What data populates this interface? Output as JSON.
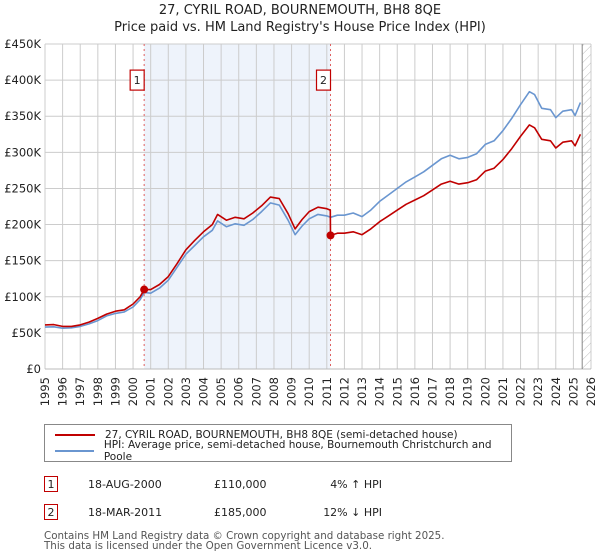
{
  "header": {
    "title": "27, CYRIL ROAD, BOURNEMOUTH, BH8 8QE",
    "subtitle": "Price paid vs. HM Land Registry's House Price Index (HPI)"
  },
  "colors": {
    "property": "#c00000",
    "hpi": "#6a96d0",
    "shade": "#eef3fb",
    "grid": "#cccccc",
    "marker_line": "#e06060"
  },
  "chart_data": {
    "type": "line",
    "title": "27, CYRIL ROAD, BOURNEMOUTH, BH8 8QE — Price paid vs. HM Land Registry's House Price Index (HPI)",
    "xlabel": "",
    "ylabel": "",
    "xlim": [
      1995,
      2026
    ],
    "ylim": [
      0,
      450000
    ],
    "grid": true,
    "legend_position": "below",
    "x_ticks": [
      "1995",
      "1996",
      "1997",
      "1998",
      "1999",
      "2000",
      "2001",
      "2002",
      "2003",
      "2004",
      "2005",
      "2006",
      "2007",
      "2008",
      "2009",
      "2010",
      "2011",
      "2012",
      "2013",
      "2014",
      "2015",
      "2016",
      "2017",
      "2018",
      "2019",
      "2020",
      "2021",
      "2022",
      "2023",
      "2024",
      "2025",
      "2026"
    ],
    "y_ticks": [
      {
        "value": 0,
        "label": "£0"
      },
      {
        "value": 50000,
        "label": "£50K"
      },
      {
        "value": 100000,
        "label": "£100K"
      },
      {
        "value": 150000,
        "label": "£150K"
      },
      {
        "value": 200000,
        "label": "£200K"
      },
      {
        "value": 250000,
        "label": "£250K"
      },
      {
        "value": 300000,
        "label": "£300K"
      },
      {
        "value": 350000,
        "label": "£350K"
      },
      {
        "value": 400000,
        "label": "£400K"
      },
      {
        "value": 450000,
        "label": "£450K"
      }
    ],
    "shaded_range": [
      2000.63,
      2011.21
    ],
    "future_hatch_from": 2025.5,
    "series": [
      {
        "name": "27, CYRIL ROAD, BOURNEMOUTH, BH8 8QE (semi-detached house)",
        "color": "#c00000",
        "points": [
          [
            1995.0,
            61000
          ],
          [
            1995.5,
            61500
          ],
          [
            1996.0,
            59000
          ],
          [
            1996.5,
            59000
          ],
          [
            1997.0,
            61000
          ],
          [
            1997.5,
            65000
          ],
          [
            1998.0,
            70000
          ],
          [
            1998.5,
            76000
          ],
          [
            1999.0,
            80000
          ],
          [
            1999.5,
            82000
          ],
          [
            2000.0,
            90000
          ],
          [
            2000.4,
            100000
          ],
          [
            2000.63,
            110000
          ],
          [
            2001.0,
            110000
          ],
          [
            2001.5,
            117000
          ],
          [
            2002.0,
            128000
          ],
          [
            2002.5,
            146000
          ],
          [
            2003.0,
            165000
          ],
          [
            2003.5,
            178000
          ],
          [
            2004.0,
            190000
          ],
          [
            2004.5,
            200000
          ],
          [
            2004.8,
            214000
          ],
          [
            2005.3,
            206000
          ],
          [
            2005.8,
            210000
          ],
          [
            2006.3,
            208000
          ],
          [
            2006.8,
            216000
          ],
          [
            2007.3,
            226000
          ],
          [
            2007.8,
            238000
          ],
          [
            2008.3,
            236000
          ],
          [
            2008.8,
            215000
          ],
          [
            2009.2,
            194000
          ],
          [
            2009.6,
            207000
          ],
          [
            2010.0,
            218000
          ],
          [
            2010.5,
            224000
          ],
          [
            2011.0,
            222000
          ],
          [
            2011.2,
            220000
          ],
          [
            2011.21,
            185000
          ],
          [
            2011.6,
            188000
          ],
          [
            2012.0,
            188000
          ],
          [
            2012.5,
            190000
          ],
          [
            2013.0,
            186000
          ],
          [
            2013.5,
            194000
          ],
          [
            2014.0,
            204000
          ],
          [
            2014.5,
            212000
          ],
          [
            2015.0,
            220000
          ],
          [
            2015.5,
            228000
          ],
          [
            2016.0,
            234000
          ],
          [
            2016.5,
            240000
          ],
          [
            2017.0,
            248000
          ],
          [
            2017.5,
            256000
          ],
          [
            2018.0,
            260000
          ],
          [
            2018.5,
            256000
          ],
          [
            2019.0,
            258000
          ],
          [
            2019.5,
            262000
          ],
          [
            2020.0,
            274000
          ],
          [
            2020.5,
            278000
          ],
          [
            2021.0,
            290000
          ],
          [
            2021.5,
            305000
          ],
          [
            2022.0,
            322000
          ],
          [
            2022.5,
            338000
          ],
          [
            2022.8,
            334000
          ],
          [
            2023.2,
            318000
          ],
          [
            2023.7,
            316000
          ],
          [
            2024.0,
            306000
          ],
          [
            2024.4,
            314000
          ],
          [
            2024.9,
            316000
          ],
          [
            2025.1,
            309000
          ],
          [
            2025.4,
            325000
          ]
        ]
      },
      {
        "name": "HPI: Average price, semi-detached house, Bournemouth Christchurch and Poole",
        "color": "#6a96d0",
        "points": [
          [
            1995.0,
            58000
          ],
          [
            1995.5,
            58500
          ],
          [
            1996.0,
            56500
          ],
          [
            1996.5,
            57000
          ],
          [
            1997.0,
            59000
          ],
          [
            1997.5,
            62500
          ],
          [
            1998.0,
            67000
          ],
          [
            1998.5,
            73500
          ],
          [
            1999.0,
            77000
          ],
          [
            1999.5,
            79000
          ],
          [
            2000.0,
            86000
          ],
          [
            2000.4,
            96000
          ],
          [
            2000.63,
            106000
          ],
          [
            2001.0,
            105000
          ],
          [
            2001.5,
            112000
          ],
          [
            2002.0,
            123000
          ],
          [
            2002.5,
            141000
          ],
          [
            2003.0,
            159000
          ],
          [
            2003.5,
            171000
          ],
          [
            2004.0,
            183000
          ],
          [
            2004.5,
            192000
          ],
          [
            2004.8,
            205000
          ],
          [
            2005.3,
            197000
          ],
          [
            2005.8,
            201000
          ],
          [
            2006.3,
            199000
          ],
          [
            2006.8,
            207000
          ],
          [
            2007.3,
            218000
          ],
          [
            2007.8,
            230000
          ],
          [
            2008.3,
            227000
          ],
          [
            2008.8,
            206000
          ],
          [
            2009.2,
            186000
          ],
          [
            2009.6,
            198000
          ],
          [
            2010.0,
            208000
          ],
          [
            2010.5,
            214000
          ],
          [
            2011.0,
            212000
          ],
          [
            2011.21,
            210000
          ],
          [
            2011.6,
            213000
          ],
          [
            2012.0,
            213000
          ],
          [
            2012.5,
            216000
          ],
          [
            2013.0,
            211000
          ],
          [
            2013.5,
            220000
          ],
          [
            2014.0,
            232000
          ],
          [
            2014.5,
            241000
          ],
          [
            2015.0,
            250000
          ],
          [
            2015.5,
            259000
          ],
          [
            2016.0,
            266000
          ],
          [
            2016.5,
            273000
          ],
          [
            2017.0,
            282000
          ],
          [
            2017.5,
            291000
          ],
          [
            2018.0,
            296000
          ],
          [
            2018.5,
            291000
          ],
          [
            2019.0,
            293000
          ],
          [
            2019.5,
            298000
          ],
          [
            2020.0,
            311000
          ],
          [
            2020.5,
            316000
          ],
          [
            2021.0,
            330000
          ],
          [
            2021.5,
            347000
          ],
          [
            2022.0,
            366000
          ],
          [
            2022.5,
            384000
          ],
          [
            2022.8,
            380000
          ],
          [
            2023.2,
            361000
          ],
          [
            2023.7,
            359000
          ],
          [
            2024.0,
            348000
          ],
          [
            2024.4,
            357000
          ],
          [
            2024.9,
            359000
          ],
          [
            2025.1,
            351000
          ],
          [
            2025.4,
            369000
          ]
        ]
      }
    ],
    "sales": [
      {
        "label": "1",
        "x": 2000.63,
        "price": 110000
      },
      {
        "label": "2",
        "x": 2011.21,
        "price": 185000
      }
    ],
    "annotation_box_value": 400000
  },
  "legend": {
    "items": [
      {
        "label": "27, CYRIL ROAD, BOURNEMOUTH, BH8 8QE (semi-detached house)",
        "color": "#c00000"
      },
      {
        "label": "HPI: Average price, semi-detached house, Bournemouth Christchurch and Poole",
        "color": "#6a96d0"
      }
    ]
  },
  "sales_table": [
    {
      "num": "1",
      "date": "18-AUG-2000",
      "price": "£110,000",
      "hpi": "4% ↑ HPI"
    },
    {
      "num": "2",
      "date": "18-MAR-2011",
      "price": "£185,000",
      "hpi": "12% ↓ HPI"
    }
  ],
  "footer": {
    "line1": "Contains HM Land Registry data © Crown copyright and database right 2025.",
    "line2": "This data is licensed under the Open Government Licence v3.0."
  }
}
